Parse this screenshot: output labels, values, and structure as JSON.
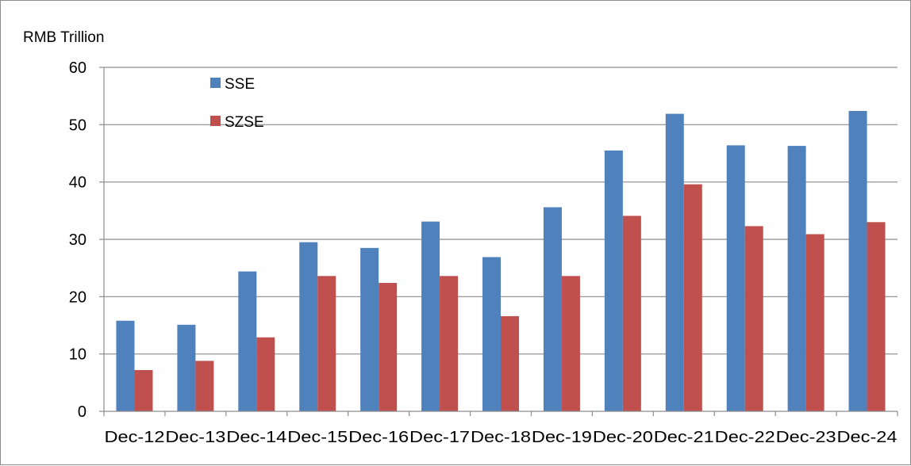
{
  "chart_data": {
    "type": "bar",
    "ylabel": "RMB Trillion",
    "categories": [
      "Dec-12",
      "Dec-13",
      "Dec-14",
      "Dec-15",
      "Dec-16",
      "Dec-17",
      "Dec-18",
      "Dec-19",
      "Dec-20",
      "Dec-21",
      "Dec-22",
      "Dec-23",
      "Dec-24"
    ],
    "series": [
      {
        "name": "SSE",
        "color": "#4f81bd",
        "values": [
          15.8,
          15.1,
          24.4,
          29.5,
          28.5,
          33.1,
          26.9,
          35.6,
          45.5,
          51.9,
          46.4,
          46.3,
          52.4
        ]
      },
      {
        "name": "SZSE",
        "color": "#c0504d",
        "values": [
          7.2,
          8.8,
          12.9,
          23.6,
          22.4,
          23.6,
          16.6,
          23.6,
          34.1,
          39.6,
          32.3,
          30.9,
          33.0
        ]
      }
    ],
    "ylim": [
      0,
      60
    ],
    "yticks": [
      0,
      10,
      20,
      30,
      40,
      50,
      60
    ],
    "grid": true,
    "legend": "top-left"
  }
}
